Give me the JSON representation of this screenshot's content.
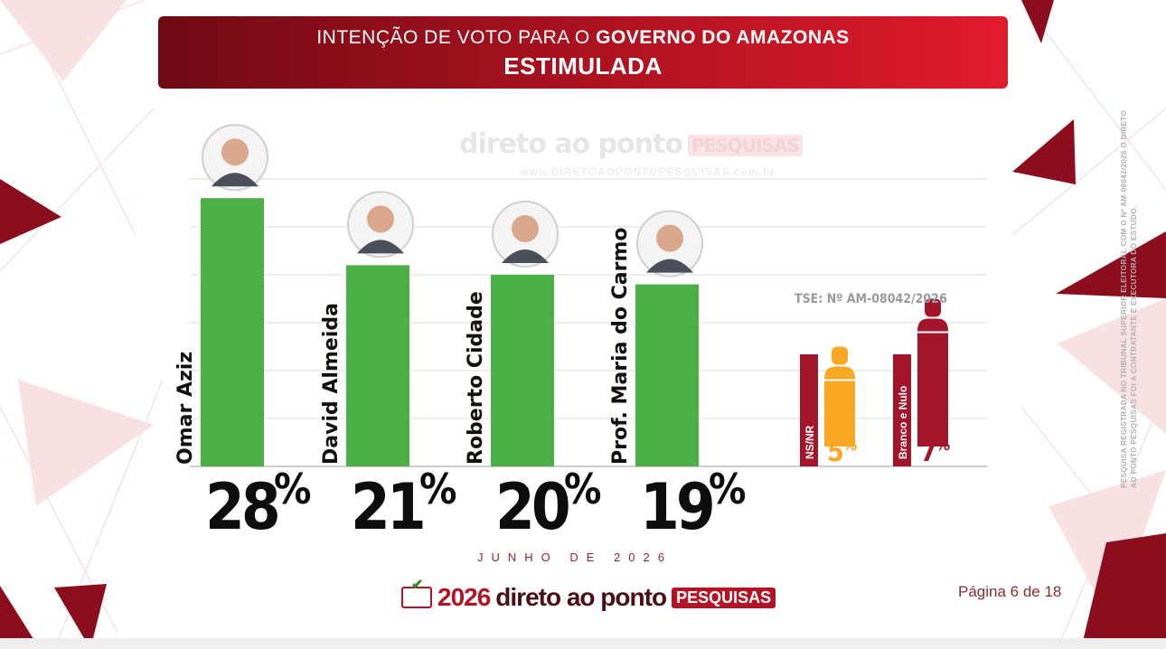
{
  "header": {
    "line1_prefix": "INTENÇÃO DE VOTO PARA O",
    "line1_bold": "GOVERNO DO AMAZONAS",
    "line2": "ESTIMULADA"
  },
  "watermark": {
    "brand": "direto ao ponto",
    "badge": "PESQUISAS",
    "url": "www.DIRETOAOPONTOPESQUISAS.com.br"
  },
  "tse": "TSE: Nº AM-08042/2026",
  "date": "JUNHO DE 2026",
  "footer": {
    "logo_box": "ELEIÇÕES",
    "year": "2026",
    "brand": "direto ao ponto",
    "tag": "PESQUISAS"
  },
  "page": "Página 6 de 18",
  "side_note": "PESQUISA REGISTRADA NO TRIBUNAL SUPERIOR ELEITORAL COM O Nº AM-08042/2026 O DIRETO AO PONTO PESQUISAS FOI A CONTRATANTE E EXECUTORA DO ESTUDO.",
  "colors": {
    "bar": "#4caf47",
    "nsnr": "#f9a825",
    "branco_nulo": "#a3152b",
    "header_dark": "#6e0a14",
    "header_light": "#e11b2c"
  },
  "chart_data": {
    "type": "bar",
    "categories": [
      "Omar Aziz",
      "David Almeida",
      "Roberto Cidade",
      "Prof. Maria do Carmo",
      "NS/NR",
      "Branco e Nulo"
    ],
    "values": [
      28,
      21,
      20,
      19,
      5,
      7
    ],
    "unit": "%",
    "grid": true,
    "candidate_icons": [
      "candidate-photo",
      "candidate-photo",
      "candidate-photo",
      "candidate-photo",
      "person-icon",
      "person-icon"
    ],
    "ylim": [
      0,
      30
    ]
  }
}
